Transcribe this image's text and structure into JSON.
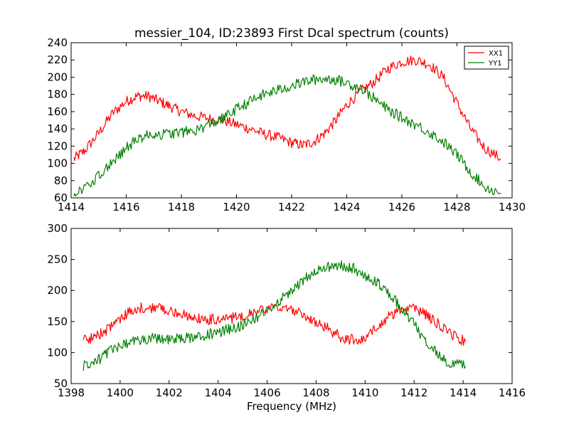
{
  "colors": {
    "XX1": "#ff0000",
    "YY1": "#008000",
    "background": "#ffffff"
  },
  "chart_data": [
    {
      "type": "line",
      "title": "messier_104, ID:23893 First Dcal spectrum (counts)",
      "xlabel": "",
      "ylabel": "",
      "xlim": [
        1414,
        1430
      ],
      "ylim": [
        60,
        240
      ],
      "xticks": [
        "1414",
        "1416",
        "1418",
        "1420",
        "1422",
        "1424",
        "1426",
        "1428",
        "1430"
      ],
      "yticks": [
        "60",
        "80",
        "100",
        "120",
        "140",
        "160",
        "180",
        "200",
        "220",
        "240"
      ],
      "legend": {
        "placement": "top-right",
        "entries": [
          "XX1",
          "YY1"
        ]
      },
      "grid": false,
      "series": [
        {
          "name": "XX1",
          "x": [
            1414.1,
            1414.5,
            1415.0,
            1415.5,
            1416.0,
            1416.4,
            1416.8,
            1417.2,
            1417.6,
            1418.0,
            1418.5,
            1419.0,
            1419.5,
            1420.0,
            1420.5,
            1421.0,
            1421.5,
            1422.0,
            1422.4,
            1422.8,
            1423.2,
            1423.6,
            1424.0,
            1424.5,
            1425.0,
            1425.5,
            1426.0,
            1426.5,
            1427.0,
            1427.5,
            1428.0,
            1428.5,
            1429.0,
            1429.6
          ],
          "values": [
            105,
            115,
            135,
            158,
            172,
            178,
            178,
            172,
            166,
            160,
            155,
            152,
            150,
            145,
            140,
            134,
            130,
            124,
            121,
            125,
            135,
            150,
            168,
            183,
            195,
            210,
            218,
            220,
            215,
            200,
            170,
            140,
            118,
            105
          ]
        },
        {
          "name": "YY1",
          "x": [
            1414.1,
            1414.5,
            1415.0,
            1415.5,
            1416.0,
            1416.5,
            1417.0,
            1417.5,
            1418.0,
            1418.5,
            1419.0,
            1419.5,
            1420.0,
            1420.5,
            1421.0,
            1421.5,
            1422.0,
            1422.5,
            1423.0,
            1423.5,
            1424.0,
            1424.5,
            1425.0,
            1425.5,
            1426.0,
            1426.5,
            1427.0,
            1427.5,
            1428.0,
            1428.5,
            1429.0,
            1429.6
          ],
          "values": [
            66,
            70,
            85,
            102,
            118,
            130,
            134,
            134,
            136,
            138,
            145,
            152,
            163,
            172,
            180,
            185,
            190,
            195,
            198,
            198,
            193,
            188,
            175,
            162,
            153,
            145,
            136,
            125,
            110,
            90,
            73,
            65
          ]
        }
      ]
    },
    {
      "type": "line",
      "title": "",
      "xlabel": "Frequency (MHz)",
      "ylabel": "",
      "xlim": [
        1398,
        1416
      ],
      "ylim": [
        50,
        300
      ],
      "xticks": [
        "1398",
        "1400",
        "1402",
        "1404",
        "1406",
        "1408",
        "1410",
        "1412",
        "1414",
        "1416"
      ],
      "yticks": [
        "50",
        "100",
        "150",
        "200",
        "250",
        "300"
      ],
      "grid": false,
      "series": [
        {
          "name": "XX1",
          "x": [
            1398.5,
            1399.0,
            1399.5,
            1400.0,
            1400.5,
            1401.0,
            1401.5,
            1402.0,
            1402.5,
            1403.0,
            1403.5,
            1404.0,
            1404.5,
            1405.0,
            1405.5,
            1406.0,
            1406.5,
            1407.0,
            1407.5,
            1408.0,
            1408.5,
            1409.0,
            1409.5,
            1410.0,
            1410.5,
            1411.0,
            1411.5,
            1412.0,
            1412.5,
            1413.0,
            1413.5,
            1414.1
          ],
          "values": [
            120,
            125,
            138,
            155,
            168,
            173,
            172,
            168,
            162,
            156,
            153,
            153,
            155,
            160,
            165,
            170,
            172,
            168,
            160,
            148,
            138,
            125,
            120,
            125,
            140,
            160,
            170,
            170,
            162,
            145,
            130,
            117
          ]
        },
        {
          "name": "YY1",
          "x": [
            1398.5,
            1399.0,
            1399.5,
            1400.0,
            1400.5,
            1401.0,
            1401.5,
            1402.0,
            1402.5,
            1403.0,
            1403.5,
            1404.0,
            1404.5,
            1405.0,
            1405.5,
            1406.0,
            1406.5,
            1407.0,
            1407.5,
            1408.0,
            1408.5,
            1409.0,
            1409.5,
            1410.0,
            1410.5,
            1411.0,
            1411.5,
            1412.0,
            1412.5,
            1413.0,
            1413.5,
            1414.1
          ],
          "values": [
            78,
            85,
            100,
            110,
            118,
            122,
            123,
            122,
            123,
            125,
            128,
            133,
            138,
            145,
            155,
            168,
            183,
            200,
            218,
            232,
            238,
            240,
            236,
            225,
            212,
            195,
            172,
            145,
            118,
            96,
            82,
            78
          ]
        }
      ]
    }
  ]
}
